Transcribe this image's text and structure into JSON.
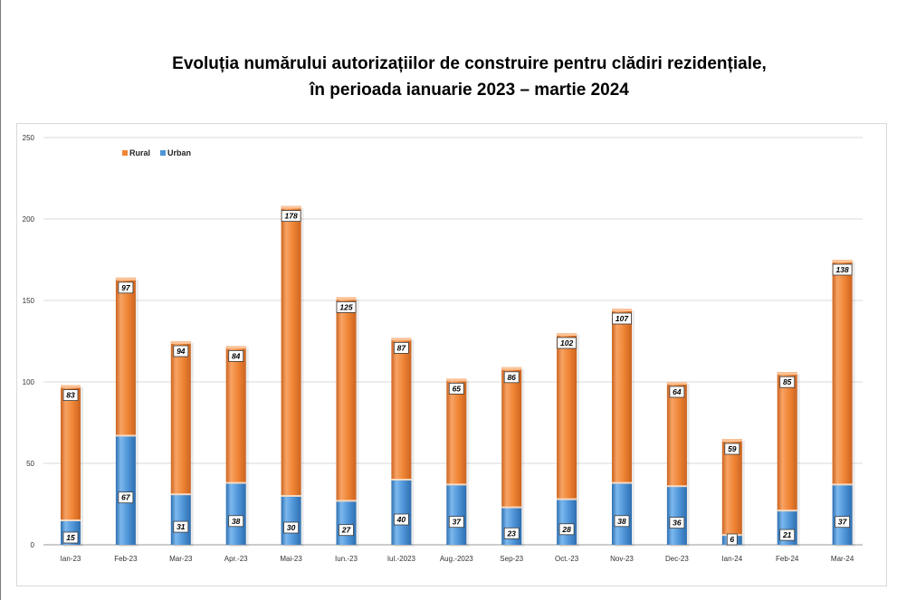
{
  "chart_data": {
    "type": "bar",
    "stacked": true,
    "title_lines": [
      "Evoluția numărului autorizațiilor de construire pentru clădiri rezidențiale,",
      "în perioada ianuarie 2023 – martie 2024"
    ],
    "categories": [
      "Ian-23",
      "Feb-23",
      "Mar-23",
      "Apr.-23",
      "Mai-23",
      "Iun.-23",
      "Iul.-2023",
      "Aug.-2023",
      "Sep-23",
      "Oct.-23",
      "Nov-23",
      "Dec-23",
      "Ian-24",
      "Feb-24",
      "Mar-24"
    ],
    "series": [
      {
        "name": "Urban",
        "color": "#4f95d8",
        "values": [
          15,
          67,
          31,
          38,
          30,
          27,
          40,
          37,
          23,
          28,
          38,
          36,
          6,
          21,
          37
        ]
      },
      {
        "name": "Rural",
        "color": "#f08535",
        "values": [
          83,
          97,
          94,
          84,
          178,
          125,
          87,
          65,
          86,
          102,
          107,
          64,
          59,
          85,
          138
        ]
      }
    ],
    "legend": [
      "Rural",
      "Urban"
    ],
    "legend_position": "top-left",
    "ylim": [
      0,
      250
    ],
    "yticks": [
      0,
      50,
      100,
      150,
      200,
      250
    ],
    "grid": true
  }
}
